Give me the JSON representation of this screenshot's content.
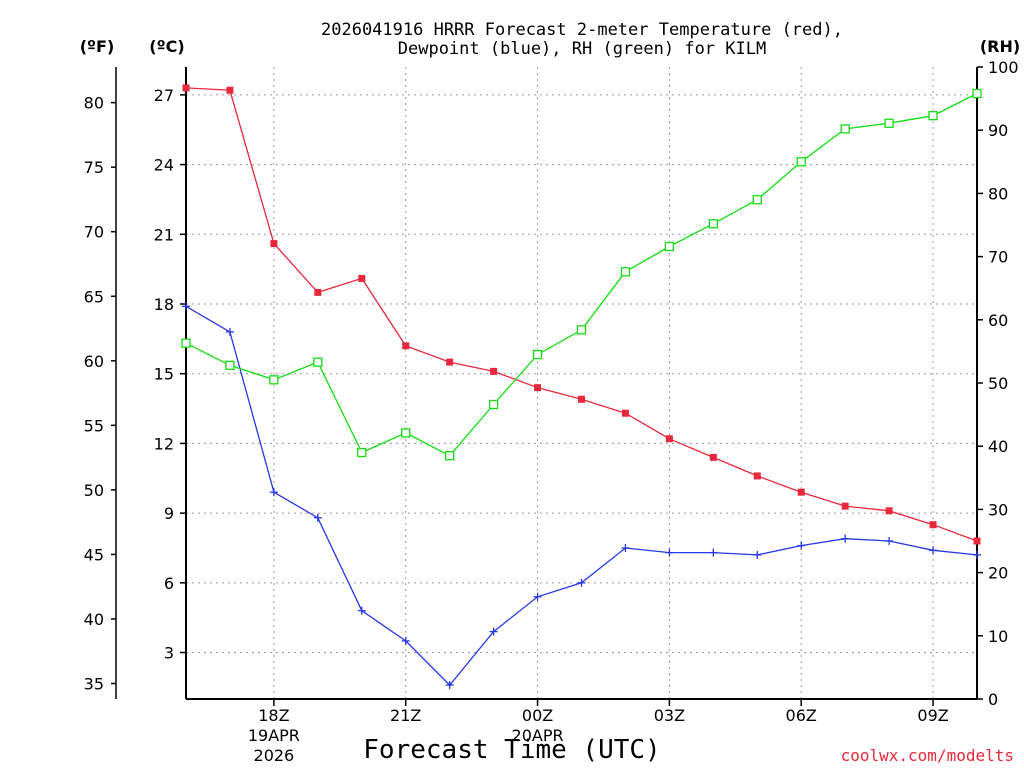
{
  "chart_data": {
    "type": "line",
    "title_line1": "2026041916 HRRR Forecast 2-meter Temperature (red),",
    "title_line2": "Dewpoint (blue), RH (green) for KILM",
    "xlabel": "Forecast Time (UTC)",
    "watermark": "coolwx.com/modelts",
    "units": {
      "fahrenheit": "(ºF)",
      "celsius": "(ºC)",
      "rh": "(RH)"
    },
    "x_hours": [
      16,
      17,
      18,
      19,
      20,
      21,
      22,
      23,
      24,
      25,
      26,
      27,
      28,
      29,
      30,
      31,
      32,
      33,
      34
    ],
    "x_range": [
      16,
      34
    ],
    "x_ticks": [
      {
        "hour": 18,
        "label": "18Z",
        "sub1": "19APR",
        "sub2": "2026"
      },
      {
        "hour": 21,
        "label": "21Z",
        "sub1": "",
        "sub2": ""
      },
      {
        "hour": 24,
        "label": "00Z",
        "sub1": "20APR",
        "sub2": ""
      },
      {
        "hour": 27,
        "label": "03Z",
        "sub1": "",
        "sub2": ""
      },
      {
        "hour": 30,
        "label": "06Z",
        "sub1": "",
        "sub2": ""
      },
      {
        "hour": 33,
        "label": "09Z",
        "sub1": "",
        "sub2": ""
      }
    ],
    "celsius_range": [
      1.0,
      28.2
    ],
    "celsius_ticks": [
      3,
      6,
      9,
      12,
      15,
      18,
      21,
      24,
      27
    ],
    "fahrenheit_ticks": [
      35,
      40,
      45,
      50,
      55,
      60,
      65,
      70,
      75,
      80
    ],
    "rh_range": [
      0,
      100
    ],
    "rh_ticks": [
      0,
      10,
      20,
      30,
      40,
      50,
      60,
      70,
      80,
      90,
      100
    ],
    "series": [
      {
        "name": "Temperature",
        "axis": "celsius",
        "color": "#e8283c",
        "marker": "filled-square",
        "values": [
          27.3,
          27.2,
          20.6,
          18.5,
          19.1,
          16.2,
          15.5,
          15.1,
          14.4,
          13.9,
          13.3,
          12.2,
          11.4,
          10.6,
          9.9,
          9.3,
          9.1,
          8.5,
          7.8
        ]
      },
      {
        "name": "Dewpoint",
        "axis": "celsius",
        "color": "#2838e8",
        "marker": "plus",
        "values": [
          17.9,
          16.8,
          9.9,
          8.8,
          4.8,
          3.5,
          1.6,
          3.9,
          5.4,
          6.0,
          7.5,
          7.3,
          7.3,
          7.2,
          7.6,
          7.9,
          7.8,
          7.4,
          7.2
        ]
      },
      {
        "name": "RH",
        "axis": "rh",
        "color": "#14dc14",
        "marker": "open-square",
        "values": [
          56.3,
          52.8,
          50.5,
          53.3,
          39.0,
          42.1,
          38.5,
          46.6,
          54.5,
          58.4,
          67.6,
          71.6,
          75.2,
          79.0,
          85.0,
          90.2,
          91.1,
          92.3,
          95.8
        ]
      }
    ]
  }
}
